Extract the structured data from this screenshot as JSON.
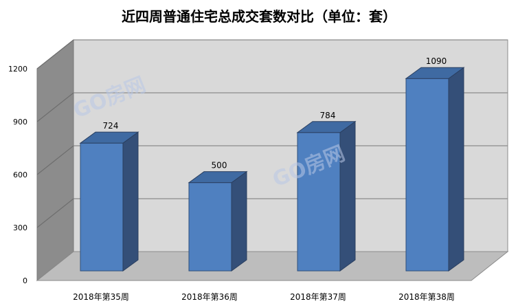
{
  "chart_data": {
    "type": "bar",
    "title": "近四周普通住宅总成交套数对比（单位：套）",
    "categories": [
      "2018年第35周",
      "2018年第36周",
      "2018年第37周",
      "2018年第38周"
    ],
    "values": [
      724,
      500,
      784,
      1090
    ],
    "data_labels": [
      "724",
      "500",
      "784",
      "1090"
    ],
    "y_ticks": [
      "0",
      "300",
      "600",
      "900",
      "1200"
    ],
    "ylim": [
      0,
      1200
    ],
    "grid": true,
    "legend": "none",
    "colors": {
      "bar_front": "#4f80c0",
      "bar_side": "#344f78",
      "bar_top": "#3f6aa2",
      "wall_back": "#d9d9d9",
      "wall_left": "#8c8c8c",
      "floor": "#bdbdbd"
    }
  },
  "watermark": "GO房网"
}
